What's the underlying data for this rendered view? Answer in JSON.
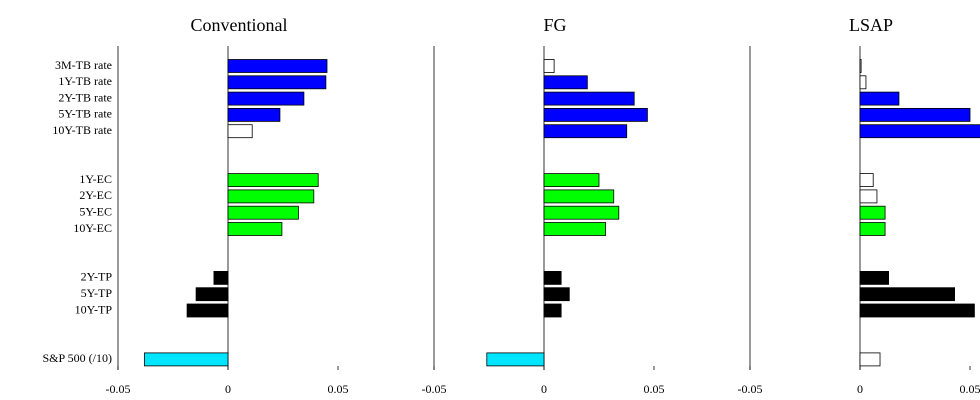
{
  "chart_data": [
    {
      "type": "bar",
      "title": "Conventional",
      "categories": [
        "3M-TB rate",
        "1Y-TB rate",
        "2Y-TB rate",
        "5Y-TB rate",
        "10Y-TB rate",
        null,
        null,
        "1Y-EC",
        "2Y-EC",
        "5Y-EC",
        "10Y-EC",
        null,
        null,
        "2Y-TP",
        "5Y-TP",
        "10Y-TP",
        null,
        null,
        "S&P 500 (/10)"
      ],
      "values": [
        0.045,
        0.0445,
        0.0345,
        0.0236,
        0.011,
        null,
        null,
        0.041,
        0.039,
        0.032,
        0.0245,
        null,
        null,
        -0.0064,
        -0.0145,
        -0.0186,
        null,
        null,
        -0.038
      ],
      "colors": [
        "#0000ff",
        "#0000ff",
        "#0000ff",
        "#0000ff",
        "#ffffff",
        null,
        null,
        "#00ff00",
        "#00ff00",
        "#00ff00",
        "#00ff00",
        null,
        null,
        "#000000",
        "#000000",
        "#000000",
        null,
        null,
        "#00e5ff"
      ],
      "xlim": [
        -0.05,
        0.06
      ],
      "xticks": [
        -0.05,
        0,
        0.05
      ]
    },
    {
      "type": "bar",
      "title": "FG",
      "values": [
        0.0046,
        0.0197,
        0.041,
        0.047,
        0.0376,
        null,
        null,
        0.025,
        0.0317,
        0.034,
        0.028,
        null,
        null,
        0.0078,
        0.0115,
        0.0078,
        null,
        null,
        -0.026
      ],
      "colors": [
        "#ffffff",
        "#0000ff",
        "#0000ff",
        "#0000ff",
        "#0000ff",
        null,
        null,
        "#00ff00",
        "#00ff00",
        "#00ff00",
        "#00ff00",
        null,
        null,
        "#000000",
        "#000000",
        "#000000",
        null,
        null,
        "#00e5ff"
      ],
      "xlim": [
        -0.05,
        0.06
      ],
      "xticks": [
        -0.05,
        0,
        0.05
      ]
    },
    {
      "type": "bar",
      "title": "LSAP",
      "values": [
        0.0005,
        0.0027,
        0.0177,
        0.05,
        0.057,
        null,
        null,
        0.006,
        0.0077,
        0.0114,
        0.0114,
        null,
        null,
        0.013,
        0.043,
        0.052,
        null,
        null,
        0.0091
      ],
      "colors": [
        "#ffffff",
        "#ffffff",
        "#0000ff",
        "#0000ff",
        "#0000ff",
        null,
        null,
        "#ffffff",
        "#ffffff",
        "#00ff00",
        "#00ff00",
        null,
        null,
        "#000000",
        "#000000",
        "#000000",
        null,
        null,
        "#ffffff"
      ],
      "xlim": [
        -0.05,
        0.06
      ],
      "xticks": [
        -0.05,
        0,
        0.05
      ]
    }
  ]
}
